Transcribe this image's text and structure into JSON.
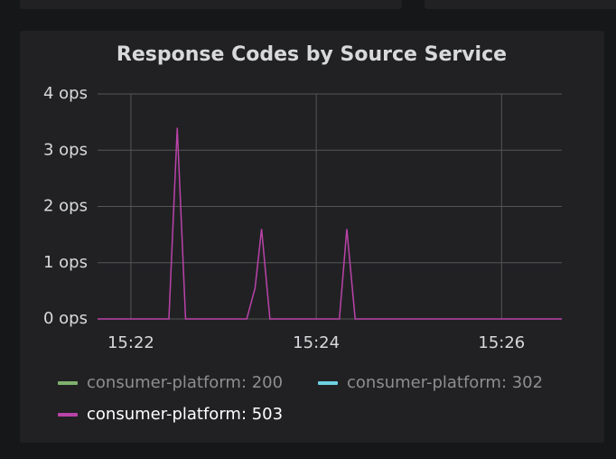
{
  "chart_data": {
    "type": "line",
    "title": "Response Codes by Source Service",
    "xlim": [
      921.64,
      926.65
    ],
    "xticks": [
      {
        "value": 922,
        "label": "15:22"
      },
      {
        "value": 924,
        "label": "15:24"
      },
      {
        "value": 926,
        "label": "15:26"
      }
    ],
    "ylim": [
      0,
      4
    ],
    "yticks": [
      {
        "value": 0,
        "label": "0 ops"
      },
      {
        "value": 1,
        "label": "1 ops"
      },
      {
        "value": 2,
        "label": "2 ops"
      },
      {
        "value": 3,
        "label": "3 ops"
      },
      {
        "value": 4,
        "label": "4 ops"
      }
    ],
    "grid": true,
    "x": [
      921.64,
      922.41,
      922.5,
      922.59,
      923.25,
      923.34,
      923.41,
      923.5,
      924.25,
      924.33,
      924.42,
      926.65
    ],
    "series": [
      {
        "name": "consumer-platform: 200",
        "color": "#7eb26d",
        "hidden": true
      },
      {
        "name": "consumer-platform: 302",
        "color": "#6ed0e0",
        "hidden": true
      },
      {
        "name": "consumer-platform: 503",
        "color": "#ba43a9",
        "values": [
          0,
          0,
          3.4,
          0,
          0,
          0.55,
          1.6,
          0,
          0,
          1.6,
          0,
          0
        ]
      }
    ]
  }
}
